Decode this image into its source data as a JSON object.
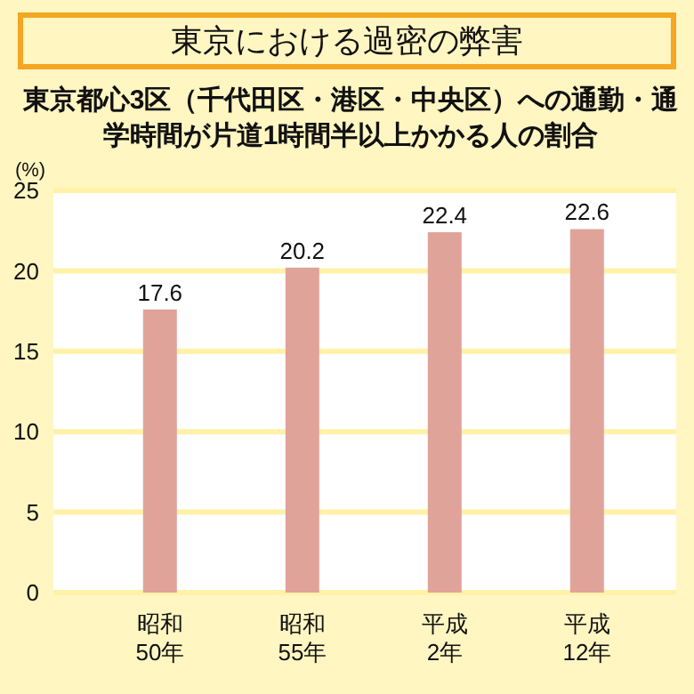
{
  "chart_data": {
    "type": "bar",
    "title": "東京における過密の弊害",
    "subtitle": "東京都心3区（千代田区・港区・中央区）への通勤・通学時間が片道1時間半以上かかる人の割合",
    "ylabel": "(%)",
    "categories": [
      "昭和\n50年",
      "昭和\n55年",
      "平成\n2年",
      "平成\n12年"
    ],
    "values": [
      17.6,
      20.2,
      22.4,
      22.6
    ],
    "color": "#e0a39a",
    "ylim": [
      0,
      25
    ],
    "yticks": [
      0,
      5,
      10,
      15,
      20,
      25
    ],
    "grid": "y",
    "data_labels": true
  }
}
